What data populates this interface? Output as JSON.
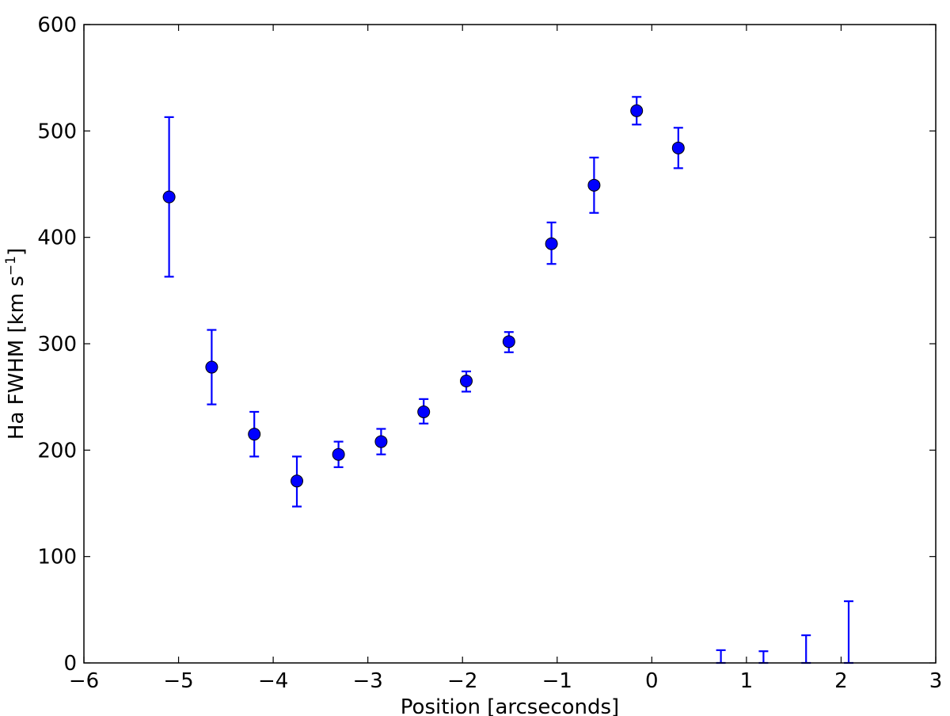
{
  "chart_data": {
    "type": "scatter",
    "title": "",
    "xlabel": "Position [arcseconds]",
    "ylabel": "Ha FWHM [km s",
    "ylabel_superscript": "−1",
    "ylabel_suffix": "]",
    "xlim": [
      -6,
      3
    ],
    "ylim": [
      0,
      600
    ],
    "xticks": [
      -6,
      -5,
      -4,
      -3,
      -2,
      -1,
      0,
      1,
      2,
      3
    ],
    "xtick_labels": [
      "−6",
      "−5",
      "−4",
      "−3",
      "−2",
      "−1",
      "0",
      "1",
      "2",
      "3"
    ],
    "yticks": [
      0,
      100,
      200,
      300,
      400,
      500,
      600
    ],
    "ytick_labels": [
      "0",
      "100",
      "200",
      "300",
      "400",
      "500",
      "600"
    ],
    "grid": false,
    "marker_color": "#0000ff",
    "errorbar_color": "#0000ff",
    "points": [
      {
        "x": -5.1,
        "y": 438,
        "ylo": 363,
        "yhi": 513
      },
      {
        "x": -4.65,
        "y": 278,
        "ylo": 243,
        "yhi": 313
      },
      {
        "x": -4.2,
        "y": 215,
        "ylo": 194,
        "yhi": 236
      },
      {
        "x": -3.75,
        "y": 171,
        "ylo": 147,
        "yhi": 194
      },
      {
        "x": -3.31,
        "y": 196,
        "ylo": 184,
        "yhi": 208
      },
      {
        "x": -2.86,
        "y": 208,
        "ylo": 196,
        "yhi": 220
      },
      {
        "x": -2.41,
        "y": 236,
        "ylo": 225,
        "yhi": 248
      },
      {
        "x": -1.96,
        "y": 265,
        "ylo": 255,
        "yhi": 274
      },
      {
        "x": -1.51,
        "y": 302,
        "ylo": 292,
        "yhi": 311
      },
      {
        "x": -1.06,
        "y": 394,
        "ylo": 375,
        "yhi": 414
      },
      {
        "x": -0.61,
        "y": 449,
        "ylo": 423,
        "yhi": 475
      },
      {
        "x": -0.16,
        "y": 519,
        "ylo": 506,
        "yhi": 532
      },
      {
        "x": 0.28,
        "y": 484,
        "ylo": 465,
        "yhi": 503
      }
    ],
    "errorbars_only": [
      {
        "x": 0.73,
        "ylo": 0,
        "yhi": 12
      },
      {
        "x": 1.18,
        "ylo": 0,
        "yhi": 11
      },
      {
        "x": 1.63,
        "ylo": 0,
        "yhi": 26
      },
      {
        "x": 2.08,
        "ylo": 0,
        "yhi": 58
      }
    ]
  }
}
